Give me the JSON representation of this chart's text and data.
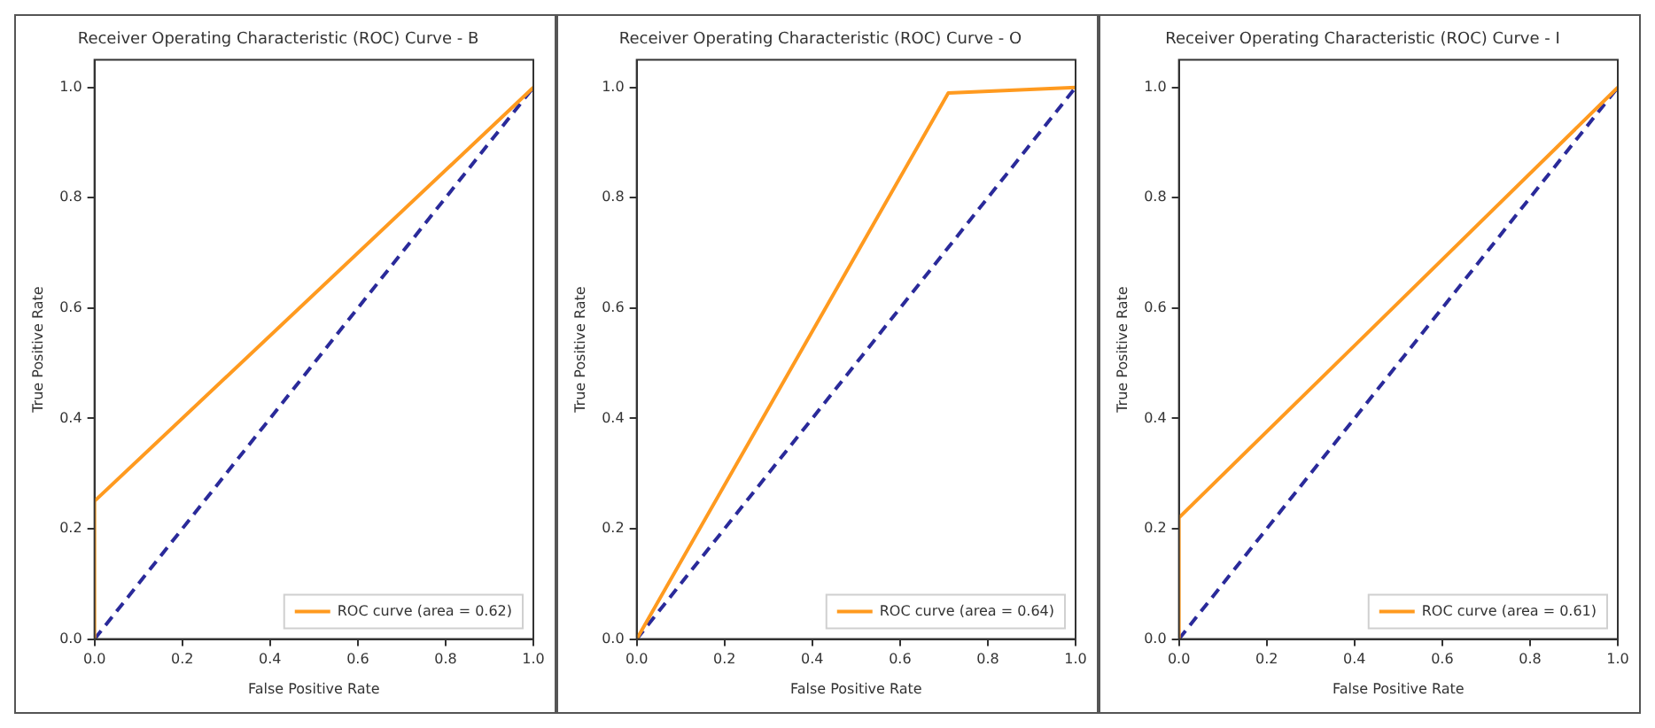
{
  "chart_data": [
    {
      "type": "line",
      "title": "Receiver Operating Characteristic (ROC) Curve - B",
      "xlabel": "False Positive Rate",
      "ylabel": "True Positive Rate",
      "xlim": [
        0,
        1
      ],
      "ylim": [
        0,
        1.05
      ],
      "xticks": [
        {
          "value": 0,
          "label": "0.0"
        },
        {
          "value": 0.2,
          "label": "0.2"
        },
        {
          "value": 0.4,
          "label": "0.4"
        },
        {
          "value": 0.6,
          "label": "0.6"
        },
        {
          "value": 0.8,
          "label": "0.8"
        },
        {
          "value": 1,
          "label": "1.0"
        }
      ],
      "yticks": [
        {
          "value": 0,
          "label": "0.0"
        },
        {
          "value": 0.2,
          "label": "0.2"
        },
        {
          "value": 0.4,
          "label": "0.4"
        },
        {
          "value": 0.6,
          "label": "0.6"
        },
        {
          "value": 0.8,
          "label": "0.8"
        },
        {
          "value": 1,
          "label": "1.0"
        }
      ],
      "grid": false,
      "legend": "bottom right",
      "marker": "none",
      "series": [
        {
          "name": "ROC curve (area = 0.62)",
          "color": "#ff9a1f",
          "x": [
            0,
            0,
            1
          ],
          "values": [
            0,
            0.25,
            1
          ],
          "line_style": "solid"
        },
        {
          "color": "#2a2a9a",
          "x": [
            0,
            1
          ],
          "values": [
            0,
            1
          ],
          "line_style": "dashed"
        }
      ]
    },
    {
      "type": "line",
      "title": "Receiver Operating Characteristic (ROC) Curve - O",
      "xlabel": "False Positive Rate",
      "ylabel": "True Positive Rate",
      "xlim": [
        0,
        1
      ],
      "ylim": [
        0,
        1.05
      ],
      "xticks": [
        {
          "value": 0,
          "label": "0.0"
        },
        {
          "value": 0.2,
          "label": "0.2"
        },
        {
          "value": 0.4,
          "label": "0.4"
        },
        {
          "value": 0.6,
          "label": "0.6"
        },
        {
          "value": 0.8,
          "label": "0.8"
        },
        {
          "value": 1,
          "label": "1.0"
        }
      ],
      "yticks": [
        {
          "value": 0,
          "label": "0.0"
        },
        {
          "value": 0.2,
          "label": "0.2"
        },
        {
          "value": 0.4,
          "label": "0.4"
        },
        {
          "value": 0.6,
          "label": "0.6"
        },
        {
          "value": 0.8,
          "label": "0.8"
        },
        {
          "value": 1,
          "label": "1.0"
        }
      ],
      "grid": false,
      "legend": "bottom right",
      "marker": "none",
      "series": [
        {
          "name": "ROC curve (area = 0.64)",
          "color": "#ff9a1f",
          "x": [
            0,
            0.71,
            1
          ],
          "values": [
            0,
            0.99,
            1
          ],
          "line_style": "solid"
        },
        {
          "color": "#2a2a9a",
          "x": [
            0,
            1
          ],
          "values": [
            0,
            1
          ],
          "line_style": "dashed"
        }
      ]
    },
    {
      "type": "line",
      "title": "Receiver Operating Characteristic (ROC) Curve - I",
      "xlabel": "False Positive Rate",
      "ylabel": "True Positive Rate",
      "xlim": [
        0,
        1
      ],
      "ylim": [
        0,
        1.05
      ],
      "xticks": [
        {
          "value": 0,
          "label": "0.0"
        },
        {
          "value": 0.2,
          "label": "0.2"
        },
        {
          "value": 0.4,
          "label": "0.4"
        },
        {
          "value": 0.6,
          "label": "0.6"
        },
        {
          "value": 0.8,
          "label": "0.8"
        },
        {
          "value": 1,
          "label": "1.0"
        }
      ],
      "yticks": [
        {
          "value": 0,
          "label": "0.0"
        },
        {
          "value": 0.2,
          "label": "0.2"
        },
        {
          "value": 0.4,
          "label": "0.4"
        },
        {
          "value": 0.6,
          "label": "0.6"
        },
        {
          "value": 0.8,
          "label": "0.8"
        },
        {
          "value": 1,
          "label": "1.0"
        }
      ],
      "grid": false,
      "legend": "bottom right",
      "marker": "none",
      "series": [
        {
          "name": "ROC curve (area = 0.61)",
          "color": "#ff9a1f",
          "x": [
            0,
            0,
            1
          ],
          "values": [
            0,
            0.22,
            1
          ],
          "line_style": "solid"
        },
        {
          "color": "#2a2a9a",
          "x": [
            0,
            1
          ],
          "values": [
            0,
            1
          ],
          "line_style": "dashed"
        }
      ]
    }
  ]
}
